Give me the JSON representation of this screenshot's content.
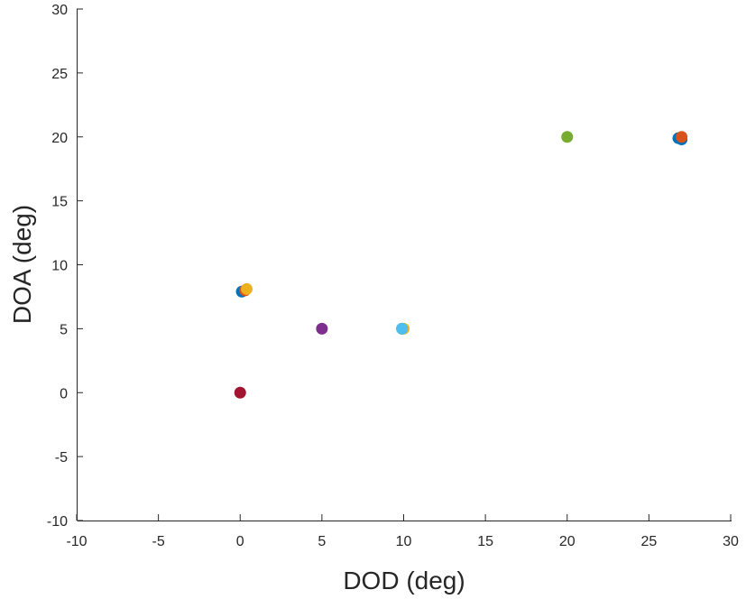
{
  "chart_data": {
    "type": "scatter",
    "title": "",
    "xlabel": "DOD (deg)",
    "ylabel": "DOA (deg)",
    "xlim": [
      -10,
      30
    ],
    "ylim": [
      -10,
      30
    ],
    "xticks": [
      "-10",
      "-5",
      "0",
      "5",
      "10",
      "15",
      "20",
      "25",
      "30"
    ],
    "yticks": [
      "-10",
      "-5",
      "0",
      "5",
      "10",
      "15",
      "20",
      "25",
      "30"
    ],
    "grid": false,
    "legend": "none",
    "series": [
      {
        "color": "#0072BD",
        "points": [
          [
            0.1,
            7.9
          ],
          [
            26.8,
            19.9
          ],
          [
            27.0,
            19.8
          ],
          [
            9.9,
            5.0
          ]
        ]
      },
      {
        "color": "#D95319",
        "points": [
          [
            0.3,
            8.0
          ],
          [
            27.0,
            20.0
          ]
        ]
      },
      {
        "color": "#EDB120",
        "points": [
          [
            0.4,
            8.1
          ],
          [
            10.0,
            5.0
          ]
        ]
      },
      {
        "color": "#7E2F8E",
        "points": [
          [
            5.0,
            5.0
          ]
        ]
      },
      {
        "color": "#77AC30",
        "points": [
          [
            20.0,
            20.0
          ]
        ]
      },
      {
        "color": "#4DBEEE",
        "points": [
          [
            9.9,
            5.0
          ]
        ]
      },
      {
        "color": "#A2142F",
        "points": [
          [
            0.0,
            0.0
          ]
        ]
      }
    ]
  }
}
